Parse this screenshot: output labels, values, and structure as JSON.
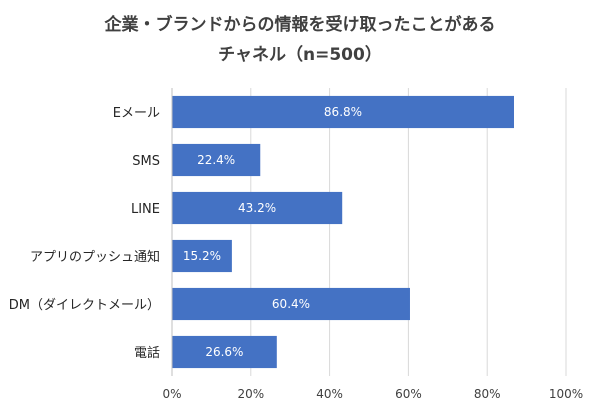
{
  "chart_data": {
    "type": "bar",
    "orientation": "horizontal",
    "title": [
      "企業・ブランドからの情報を受け取ったことがある",
      "チャネル（n=500）"
    ],
    "categories": [
      "Eメール",
      "SMS",
      "LINE",
      "アプリのプッシュ通知",
      "DM（ダイレクトメール）",
      "電話"
    ],
    "values": [
      86.8,
      22.4,
      43.2,
      15.2,
      60.4,
      26.6
    ],
    "value_labels": [
      "86.8%",
      "22.4%",
      "43.2%",
      "15.2%",
      "60.4%",
      "26.6%"
    ],
    "xlim": [
      0,
      100
    ],
    "x_ticks": [
      0,
      20,
      40,
      60,
      80,
      100
    ],
    "x_tick_labels": [
      "0%",
      "20%",
      "40%",
      "60%",
      "80%",
      "100%"
    ],
    "grid": "vertical",
    "bar_color": "#4472C4",
    "grid_color": "#D9D9D9"
  }
}
